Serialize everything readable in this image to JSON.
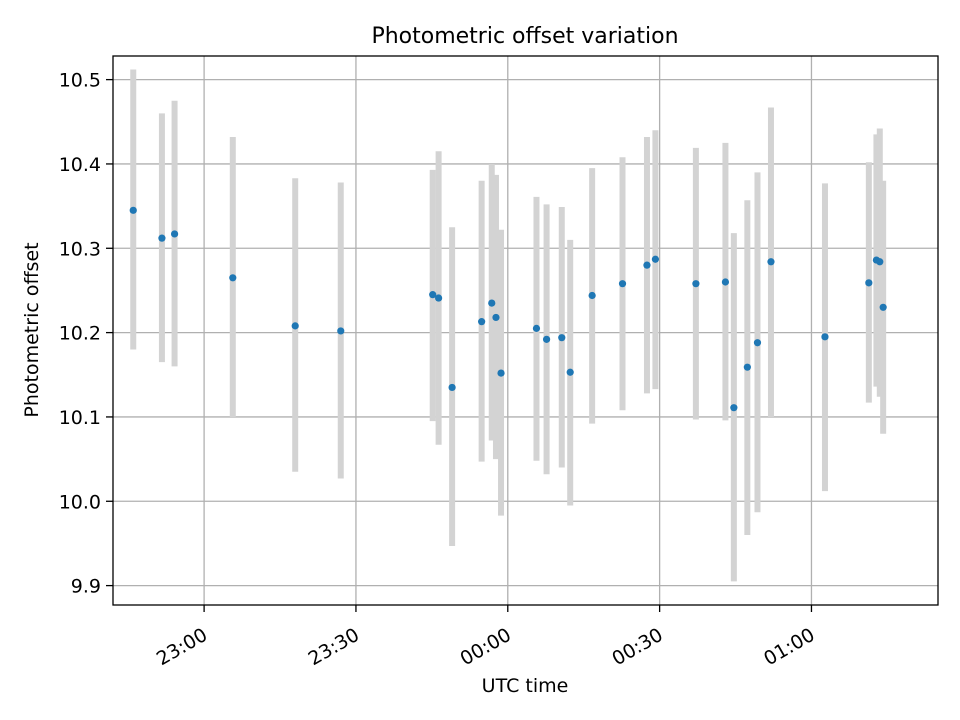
{
  "chart_data": {
    "type": "scatter",
    "title": "Photometric offset variation",
    "xlabel": "UTC time",
    "ylabel": "Photometric offset",
    "xlim": [
      "22:42",
      "01:25"
    ],
    "ylim": [
      9.877,
      10.528
    ],
    "x_ticks": [
      "23:00",
      "23:30",
      "00:00",
      "00:30",
      "01:00"
    ],
    "y_ticks": [
      "9.9",
      "10.0",
      "10.1",
      "10.2",
      "10.3",
      "10.4",
      "10.5"
    ],
    "grid": true,
    "colors": {
      "point": "#1f77b4",
      "errorbar": "#d3d3d3",
      "grid": "#b0b0b0"
    },
    "series": [
      {
        "points": [
          {
            "t": "22:46:00",
            "y": 10.345,
            "lo": 10.18,
            "hi": 10.512
          },
          {
            "t": "22:51:40",
            "y": 10.312,
            "lo": 10.165,
            "hi": 10.46
          },
          {
            "t": "22:54:10",
            "y": 10.317,
            "lo": 10.16,
            "hi": 10.475
          },
          {
            "t": "23:05:40",
            "y": 10.265,
            "lo": 10.1,
            "hi": 10.432
          },
          {
            "t": "23:18:00",
            "y": 10.208,
            "lo": 10.035,
            "hi": 10.383
          },
          {
            "t": "23:27:00",
            "y": 10.202,
            "lo": 10.027,
            "hi": 10.378
          },
          {
            "t": "23:45:10",
            "y": 10.245,
            "lo": 10.095,
            "hi": 10.393
          },
          {
            "t": "23:46:20",
            "y": 10.241,
            "lo": 10.067,
            "hi": 10.415
          },
          {
            "t": "23:49:00",
            "y": 10.135,
            "lo": 9.947,
            "hi": 10.325
          },
          {
            "t": "23:54:50",
            "y": 10.213,
            "lo": 10.047,
            "hi": 10.38
          },
          {
            "t": "23:56:50",
            "y": 10.235,
            "lo": 10.072,
            "hi": 10.4
          },
          {
            "t": "23:57:40",
            "y": 10.218,
            "lo": 10.05,
            "hi": 10.387
          },
          {
            "t": "23:58:40",
            "y": 10.152,
            "lo": 9.983,
            "hi": 10.322
          },
          {
            "t": "00:05:40",
            "y": 10.205,
            "lo": 10.048,
            "hi": 10.361
          },
          {
            "t": "00:07:40",
            "y": 10.192,
            "lo": 10.032,
            "hi": 10.352
          },
          {
            "t": "00:10:40",
            "y": 10.194,
            "lo": 10.04,
            "hi": 10.349
          },
          {
            "t": "00:12:20",
            "y": 10.153,
            "lo": 9.995,
            "hi": 10.31
          },
          {
            "t": "00:16:40",
            "y": 10.244,
            "lo": 10.092,
            "hi": 10.395
          },
          {
            "t": "00:22:40",
            "y": 10.258,
            "lo": 10.108,
            "hi": 10.408
          },
          {
            "t": "00:27:30",
            "y": 10.28,
            "lo": 10.128,
            "hi": 10.432
          },
          {
            "t": "00:29:10",
            "y": 10.287,
            "lo": 10.133,
            "hi": 10.44
          },
          {
            "t": "00:37:10",
            "y": 10.258,
            "lo": 10.097,
            "hi": 10.419
          },
          {
            "t": "00:43:00",
            "y": 10.26,
            "lo": 10.096,
            "hi": 10.425
          },
          {
            "t": "00:44:40",
            "y": 10.111,
            "lo": 9.905,
            "hi": 10.318
          },
          {
            "t": "00:47:20",
            "y": 10.159,
            "lo": 9.96,
            "hi": 10.357
          },
          {
            "t": "00:49:20",
            "y": 10.188,
            "lo": 9.987,
            "hi": 10.39
          },
          {
            "t": "00:52:00",
            "y": 10.284,
            "lo": 10.1,
            "hi": 10.467
          },
          {
            "t": "01:02:40",
            "y": 10.195,
            "lo": 10.012,
            "hi": 10.377
          },
          {
            "t": "01:11:20",
            "y": 10.259,
            "lo": 10.117,
            "hi": 10.402
          },
          {
            "t": "01:12:50",
            "y": 10.286,
            "lo": 10.136,
            "hi": 10.435
          },
          {
            "t": "01:13:30",
            "y": 10.284,
            "lo": 10.124,
            "hi": 10.442
          },
          {
            "t": "01:14:10",
            "y": 10.23,
            "lo": 10.08,
            "hi": 10.38
          }
        ]
      }
    ]
  }
}
